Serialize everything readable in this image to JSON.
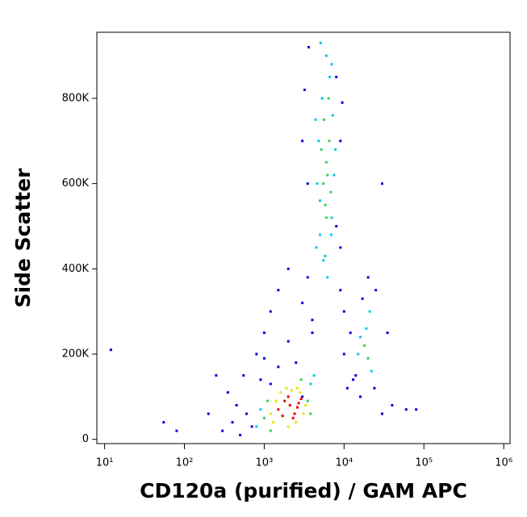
{
  "chart_data": {
    "type": "scatter",
    "x_label": "CD120a (purified) / GAM APC",
    "y_label": "Side Scatter",
    "xscale": "log",
    "xlim": [
      8,
      1200000
    ],
    "xticks": [
      {
        "value": 10,
        "label": "10¹"
      },
      {
        "value": 100,
        "label": "10²"
      },
      {
        "value": 1000,
        "label": "10³"
      },
      {
        "value": 10000,
        "label": "10⁴"
      },
      {
        "value": 100000,
        "label": "10⁵"
      },
      {
        "value": 1000000,
        "label": "10⁶"
      }
    ],
    "ylim": [
      -10000,
      955000
    ],
    "yticks": [
      0,
      {
        "value": 200000,
        "label": "200K"
      },
      {
        "value": 400000,
        "label": "400K"
      },
      {
        "value": 600000,
        "label": "600K"
      },
      {
        "value": 800000,
        "label": "800K"
      }
    ],
    "series": [
      {
        "color": "#0000dd",
        "x": [
          300,
          400,
          500,
          600,
          700,
          350,
          450,
          550,
          800,
          1000,
          1200,
          1500,
          2000,
          3000,
          4000,
          9000,
          10000,
          12000,
          14000,
          16000,
          25000,
          30000,
          40000,
          8000,
          9000,
          3500,
          3000,
          2500,
          2000,
          1500,
          1200,
          1000,
          900,
          3000,
          4000,
          3500,
          11000,
          13000,
          10000,
          9000,
          30000,
          60000,
          80000,
          12,
          55,
          80,
          200,
          250,
          8000,
          9500,
          3200,
          3600,
          20000,
          24000,
          17000,
          35000
        ],
        "values": [
          20000,
          40000,
          10000,
          60000,
          30000,
          110000,
          80000,
          150000,
          200000,
          250000,
          300000,
          350000,
          400000,
          320000,
          280000,
          350000,
          300000,
          250000,
          150000,
          100000,
          350000,
          60000,
          80000,
          500000,
          700000,
          600000,
          700000,
          180000,
          230000,
          170000,
          130000,
          190000,
          140000,
          100000,
          250000,
          380000,
          120000,
          140000,
          200000,
          450000,
          600000,
          70000,
          70000,
          210000,
          40000,
          20000,
          60000,
          150000,
          850000,
          790000,
          820000,
          920000,
          380000,
          120000,
          330000,
          250000
        ]
      },
      {
        "color": "#00c8e6",
        "x": [
          4500,
          5000,
          7000,
          7500,
          4800,
          5300,
          6600,
          7200,
          5000,
          6000,
          7800,
          4600,
          5500,
          6900,
          16000,
          19000,
          22000,
          15000,
          21000,
          800,
          900,
          3800,
          4200,
          6200,
          5800,
          7000,
          4400,
          5100
        ],
        "values": [
          450000,
          480000,
          520000,
          620000,
          700000,
          800000,
          850000,
          760000,
          560000,
          900000,
          680000,
          600000,
          420000,
          480000,
          240000,
          260000,
          160000,
          200000,
          300000,
          30000,
          70000,
          130000,
          150000,
          380000,
          430000,
          880000,
          750000,
          930000
        ]
      },
      {
        "color": "#2fd45a",
        "x": [
          1000,
          1200,
          3500,
          3800,
          1100,
          2900,
          5500,
          6000,
          6500,
          5800,
          6200,
          5200,
          6800,
          6000,
          5600,
          6400,
          18000,
          20000
        ],
        "values": [
          50000,
          20000,
          90000,
          60000,
          90000,
          140000,
          600000,
          650000,
          700000,
          550000,
          620000,
          680000,
          580000,
          520000,
          750000,
          800000,
          220000,
          190000
        ]
      },
      {
        "color": "#e6e600",
        "x": [
          1300,
          1600,
          1900,
          2200,
          2500,
          2800,
          3100,
          1400,
          3300,
          2000,
          1200,
          2600
        ],
        "values": [
          40000,
          110000,
          120000,
          115000,
          40000,
          110000,
          60000,
          90000,
          80000,
          30000,
          60000,
          120000
        ]
      },
      {
        "color": "#e60000",
        "x": [
          1500,
          1800,
          2100,
          2400,
          2700,
          2000,
          2300,
          1700,
          2600,
          2900
        ],
        "values": [
          70000,
          90000,
          80000,
          60000,
          85000,
          100000,
          50000,
          55000,
          75000,
          95000
        ]
      }
    ]
  }
}
